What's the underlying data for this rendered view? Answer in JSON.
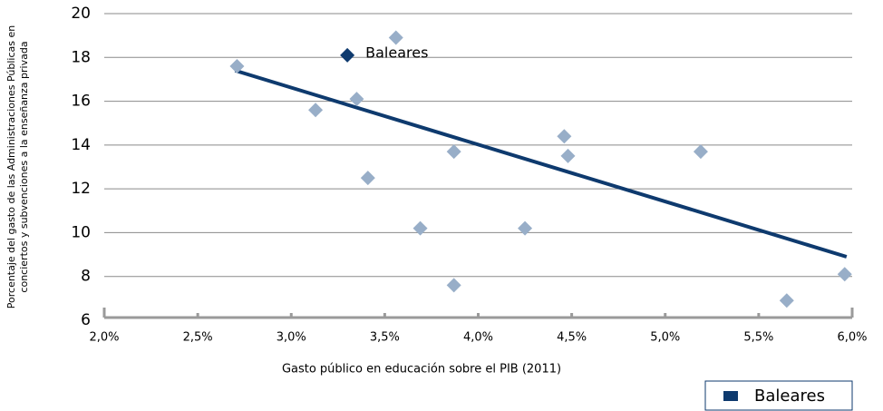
{
  "chart_data": {
    "type": "scatter",
    "xlabel": "Gasto público en educación sobre el PIB (2011)",
    "ylabel": [
      "Porcentaje del gasto de las Administraciones Públicas en",
      "conciertos y subvenciones a la enseñanza privada"
    ],
    "xlim": [
      2.0,
      6.0
    ],
    "xticks": [
      {
        "value": 2.0,
        "label": "2,0%"
      },
      {
        "value": 2.5,
        "label": "2,5%"
      },
      {
        "value": 3.0,
        "label": "3,0%"
      },
      {
        "value": 3.5,
        "label": "3,5%"
      },
      {
        "value": 4.0,
        "label": "4,0%"
      },
      {
        "value": 4.5,
        "label": "4,5%"
      },
      {
        "value": 5.0,
        "label": "5,0%"
      },
      {
        "value": 5.5,
        "label": "5,5%"
      },
      {
        "value": 6.0,
        "label": "6,0%"
      }
    ],
    "ylim": [
      6,
      20
    ],
    "yticks": [
      6,
      8,
      10,
      12,
      14,
      16,
      18,
      20
    ],
    "grid": true,
    "series": [
      {
        "color": "#98aec8",
        "x": [
          2.71,
          3.13,
          3.35,
          3.41,
          3.56,
          3.69,
          3.87,
          3.87,
          4.25,
          4.46,
          4.48,
          5.19,
          5.65,
          5.96
        ],
        "values": [
          17.6,
          15.6,
          16.1,
          12.5,
          18.9,
          10.2,
          13.7,
          7.6,
          10.2,
          14.4,
          13.5,
          13.7,
          6.9,
          8.1
        ]
      },
      {
        "name": "Baleares",
        "color": "#0e3a6e",
        "x": [
          3.3
        ],
        "values": [
          18.1
        ]
      }
    ],
    "trendline": {
      "color": "#0e3a6e",
      "x": [
        2.7,
        5.97
      ],
      "values": [
        17.4,
        8.9
      ]
    },
    "legend": "bottom-right"
  }
}
